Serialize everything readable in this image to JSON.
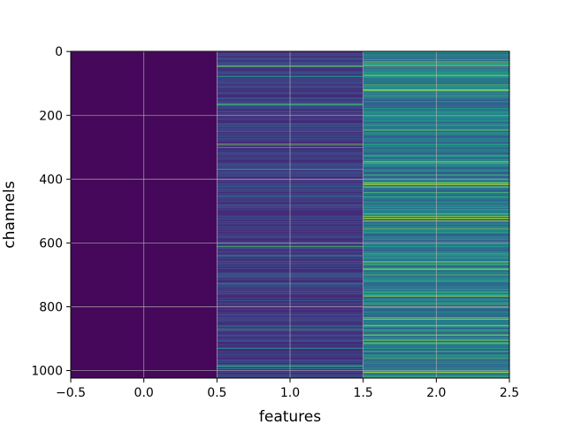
{
  "chart_data": {
    "type": "heatmap",
    "title": "",
    "xlabel": "features",
    "ylabel": "channels",
    "xlim": [
      -0.5,
      2.5
    ],
    "ylim": [
      1023.5,
      -0.5
    ],
    "x_ticks": [
      -0.5,
      0.0,
      0.5,
      1.0,
      1.5,
      2.0,
      2.5
    ],
    "x_tick_labels": [
      "−0.5",
      "0.0",
      "0.5",
      "1.0",
      "1.5",
      "2.0",
      "2.5"
    ],
    "y_ticks": [
      0,
      200,
      400,
      600,
      800,
      1000
    ],
    "y_tick_labels": [
      "0",
      "200",
      "400",
      "600",
      "800",
      "1000"
    ],
    "grid": true,
    "colormap": "viridis",
    "columns": [
      {
        "feature": 0,
        "typical_level": 0.02,
        "variation": 0.03
      },
      {
        "feature": 1,
        "typical_level": 0.12,
        "variation": 0.25
      },
      {
        "feature": 2,
        "typical_level": 0.3,
        "variation": 0.45
      }
    ],
    "rows": 1024,
    "bright_channels": [
      {
        "feature": 2,
        "channels": [
          40,
          75,
          130,
          230,
          345,
          350,
          600,
          640,
          700,
          720,
          790,
          860,
          940
        ]
      },
      {
        "feature": 1,
        "channels": [
          45,
          165,
          290,
          300,
          370,
          610,
          870,
          985
        ]
      }
    ]
  }
}
